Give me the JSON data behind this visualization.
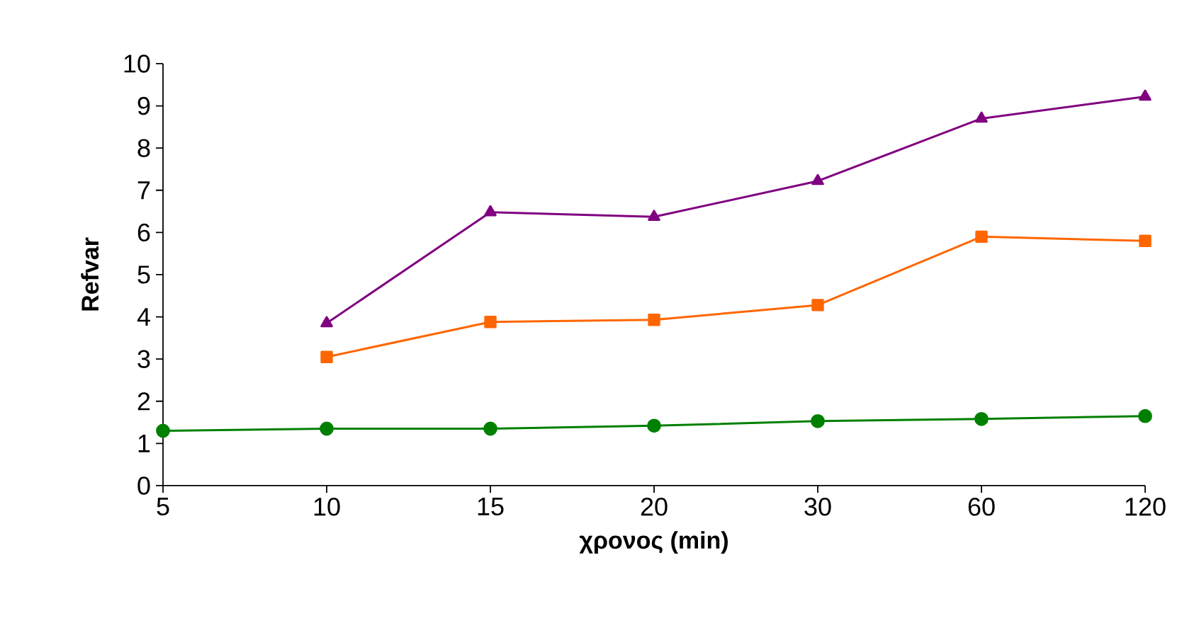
{
  "chart_data": {
    "type": "line",
    "xlabel": "χρονος (min)",
    "ylabel": "Refvar",
    "categories": [
      "5",
      "10",
      "15",
      "20",
      "30",
      "60",
      "120"
    ],
    "ylim": [
      0,
      10
    ],
    "yticks": [
      0,
      1,
      2,
      3,
      4,
      5,
      6,
      7,
      8,
      9,
      10
    ],
    "series": [
      {
        "color": "#008000",
        "marker": "circle",
        "values": [
          1.3,
          1.35,
          1.35,
          1.42,
          1.53,
          1.58,
          1.65
        ]
      },
      {
        "color": "#ff6600",
        "marker": "square",
        "values": [
          null,
          3.05,
          3.88,
          3.93,
          4.28,
          5.9,
          5.8
        ]
      },
      {
        "color": "#800080",
        "marker": "triangle",
        "values": [
          null,
          3.85,
          6.48,
          6.37,
          7.22,
          8.7,
          9.22
        ]
      }
    ]
  }
}
